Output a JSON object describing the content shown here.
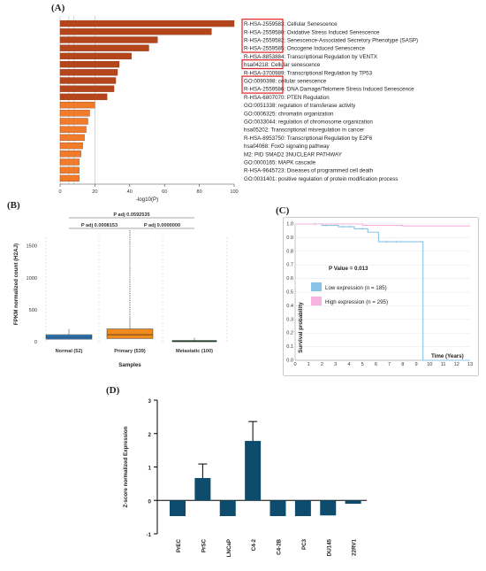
{
  "panels": {
    "a": "(A)",
    "b": "(B)",
    "c": "(C)",
    "d": "(D)"
  },
  "colors": {
    "enrich_dark": "#b5461c",
    "enrich_light": "#f07b2a",
    "highlight": "#e02020",
    "box_normal": "#2e7bbf",
    "box_primary": "#f08a1c",
    "box_metastatic": "#2f8a46",
    "km_low": "#89c3e8",
    "km_high": "#f6b3dd",
    "bar_d": "#0e4c6e"
  },
  "chart_data": [
    {
      "id": "A",
      "type": "bar",
      "orientation": "horizontal",
      "xlabel": "-log10(P)",
      "xlim": [
        0,
        100
      ],
      "xticks": [
        "0",
        "20",
        "40",
        "60",
        "80",
        "100"
      ],
      "grid": false,
      "categories": [
        "R-HSA-2559583: Cellular Senescence",
        "R-HSA-2559580: Oxidative Stress Induced Senescence",
        "R-HSA-2559582: Senescence-Associated Secretory Phenotype (SASP)",
        "R-HSA-2559585: Oncogene Induced Senescence",
        "R-HSA-8853884: Transcriptional Regulation by VENTX",
        "hsa04218: Cellular senescence",
        "R-HSA-3700989: Transcriptional Regulation by TP53",
        "GO:0090398: cellular senescence",
        "R-HSA-2559586: DNA Damage/Telomere Stress Induced Senescence",
        "R-HSA-6807070: PTEN Regulation",
        "GO:0051338: regulation of transferase activity",
        "GO:0006325: chromatin organization",
        "GO:0033044: regulation of chromosome organization",
        "hsa05202: Transcriptional misregulation in cancer",
        "R-HSA-8953750: Transcriptional Regulation by E2F6",
        "hsa04068: FoxO signaling pathway",
        "M2: PID SMAD2 3NUCLEAR PATHWAY",
        "GO:0000165: MAPK cascade",
        "R-HSA-9645723: Diseases of programmed cell death",
        "GO:0031401: positive regulation of protein modification process"
      ],
      "values": [
        100,
        87,
        56,
        51,
        41,
        34,
        33,
        32,
        31,
        27,
        20,
        17,
        16,
        15,
        14,
        13,
        12,
        11,
        11,
        11
      ],
      "highlighted_groups": [
        [
          0,
          3
        ],
        [
          5,
          5
        ],
        [
          7,
          8
        ]
      ]
    },
    {
      "id": "B",
      "type": "box",
      "ylabel": "FPKM normalized count (H2AJ)",
      "xlabel": "Samples",
      "ylim": [
        0,
        1800
      ],
      "yticks": [
        "0",
        "500",
        "1000",
        "1500"
      ],
      "categories": [
        "Normal (52)",
        "Primary (539)",
        "Metastatic (100)"
      ],
      "boxes": [
        {
          "q1": 40,
          "median": 70,
          "q3": 110,
          "whisker_low": 0,
          "whisker_high": 180
        },
        {
          "q1": 50,
          "median": 110,
          "q3": 200,
          "whisker_low": 0,
          "whisker_high": 400
        },
        {
          "q1": 0,
          "median": 10,
          "q3": 20,
          "whisker_low": 0,
          "whisker_high": 40
        }
      ],
      "annotations": [
        "P adj 0.0592535",
        "P adj 0.0008153",
        "P adj 0.0000000"
      ]
    },
    {
      "id": "C",
      "type": "line",
      "subtype": "kaplan-meier",
      "ylabel": "Survival probability",
      "xlabel": "Time (Years)",
      "ylim": [
        0,
        1
      ],
      "xlim": [
        0,
        13
      ],
      "yticks": [
        "0.0",
        "0.1",
        "0.2",
        "0.3",
        "0.4",
        "0.5",
        "0.6",
        "0.7",
        "0.8",
        "0.9",
        "1.0"
      ],
      "xticks": [
        "0",
        "1",
        "2",
        "3",
        "4",
        "5",
        "6",
        "7",
        "8",
        "9",
        "10",
        "11",
        "12",
        "13"
      ],
      "pvalue": "P Value = 0.013",
      "series": [
        {
          "name": "Low expression (n = 185)",
          "x": [
            0,
            2,
            3.2,
            4.4,
            5.4,
            6.2,
            8,
            9.5,
            9.5,
            13
          ],
          "y": [
            1,
            0.99,
            0.98,
            0.965,
            0.94,
            0.87,
            0.87,
            0.87,
            0,
            0
          ]
        },
        {
          "name": "High expression (n = 295)",
          "x": [
            0,
            3,
            5,
            8,
            9.5,
            13
          ],
          "y": [
            1,
            1,
            0.99,
            0.985,
            0.985,
            0.985
          ]
        }
      ]
    },
    {
      "id": "D",
      "type": "bar",
      "ylabel": "Z-score normalized Expression",
      "ylim": [
        -1,
        3
      ],
      "yticks": [
        "-1",
        "0",
        "1",
        "2",
        "3"
      ],
      "categories": [
        "PrEC",
        "PrSC",
        "LNCaP",
        "C4-2",
        "C4-2B",
        "PC3",
        "DU145",
        "22RV1"
      ],
      "values": [
        -0.47,
        0.67,
        -0.47,
        1.78,
        -0.47,
        -0.47,
        -0.45,
        -0.1
      ],
      "errors": [
        0,
        0.42,
        0,
        0.58,
        0,
        0,
        0,
        0
      ]
    }
  ]
}
